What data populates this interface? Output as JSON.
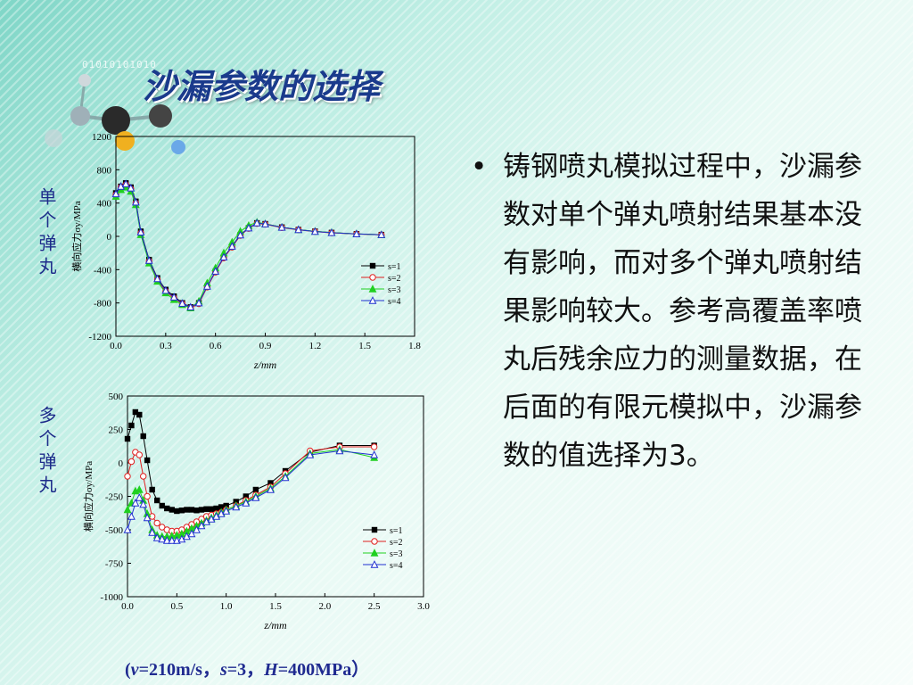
{
  "slide": {
    "title": "沙漏参数的选择",
    "decor_binary": "01010101010",
    "label_single": "单个弹丸",
    "label_multi": "多个弹丸",
    "bullet": "•",
    "body_text": "铸钢喷丸模拟过程中，沙漏参数对单个弹丸喷射结果基本没有影响，而对多个弹丸喷射结果影响较大。参考高覆盖率喷丸后残余应力的测量数据，在后面的有限元模拟中，沙漏参数的值选择为3。",
    "params": {
      "open": "(",
      "v_sym": "v",
      "v_val": "=210m/s，",
      "s_sym": "s",
      "s_val": "=3，",
      "h_sym": "H",
      "h_val": "=400MPa）"
    }
  },
  "chart_data": [
    {
      "type": "line",
      "xlabel": "z/mm",
      "ylabel": "横向应力σy/MPa",
      "xlim": [
        0,
        1.8
      ],
      "ylim": [
        -1200,
        1200
      ],
      "xticks": [
        "0.0",
        "0.3",
        "0.6",
        "0.9",
        "1.2",
        "1.5",
        "1.8"
      ],
      "yticks": [
        "-1200",
        "-800",
        "-400",
        "0",
        "400",
        "800",
        "1200"
      ],
      "legend_placement": "lower-right",
      "series": [
        {
          "name": "s=1",
          "marker": "square-filled",
          "color": "#000000",
          "x": [
            0,
            0.03,
            0.06,
            0.09,
            0.12,
            0.15,
            0.2,
            0.25,
            0.3,
            0.35,
            0.4,
            0.45,
            0.5,
            0.55,
            0.6,
            0.65,
            0.7,
            0.75,
            0.8,
            0.85,
            0.9,
            1.0,
            1.1,
            1.2,
            1.3,
            1.45,
            1.6
          ],
          "y": [
            520,
            600,
            640,
            590,
            420,
            60,
            -280,
            -500,
            -640,
            -720,
            -800,
            -850,
            -800,
            -600,
            -420,
            -250,
            -120,
            20,
            100,
            160,
            150,
            110,
            80,
            60,
            45,
            30,
            20
          ]
        },
        {
          "name": "s=2",
          "marker": "circle-open",
          "color": "#e02020",
          "x": [
            0,
            0.03,
            0.06,
            0.09,
            0.12,
            0.15,
            0.2,
            0.25,
            0.3,
            0.35,
            0.4,
            0.45,
            0.5,
            0.55,
            0.6,
            0.65,
            0.7,
            0.75,
            0.8,
            0.85,
            0.9,
            1.0,
            1.1,
            1.2,
            1.3,
            1.45,
            1.6
          ],
          "y": [
            500,
            590,
            620,
            570,
            400,
            40,
            -300,
            -520,
            -660,
            -740,
            -810,
            -860,
            -810,
            -610,
            -430,
            -260,
            -130,
            10,
            95,
            155,
            145,
            105,
            78,
            58,
            42,
            28,
            18
          ]
        },
        {
          "name": "s=3",
          "marker": "triangle-filled",
          "color": "#20d020",
          "x": [
            0,
            0.03,
            0.06,
            0.09,
            0.12,
            0.15,
            0.2,
            0.25,
            0.3,
            0.35,
            0.4,
            0.45,
            0.5,
            0.55,
            0.6,
            0.65,
            0.7,
            0.75,
            0.8,
            0.85,
            0.9,
            1.0,
            1.1,
            1.2,
            1.3,
            1.45,
            1.6
          ],
          "y": [
            480,
            560,
            590,
            540,
            380,
            20,
            -320,
            -540,
            -680,
            -760,
            -820,
            -860,
            -780,
            -560,
            -380,
            -200,
            -70,
            60,
            130,
            170,
            150,
            110,
            80,
            60,
            45,
            30,
            20
          ]
        },
        {
          "name": "s=4",
          "marker": "triangle-open",
          "color": "#2030d0",
          "x": [
            0,
            0.03,
            0.06,
            0.09,
            0.12,
            0.15,
            0.2,
            0.25,
            0.3,
            0.35,
            0.4,
            0.45,
            0.5,
            0.55,
            0.6,
            0.65,
            0.7,
            0.75,
            0.8,
            0.85,
            0.9,
            1.0,
            1.1,
            1.2,
            1.3,
            1.45,
            1.6
          ],
          "y": [
            510,
            600,
            630,
            580,
            410,
            50,
            -290,
            -510,
            -650,
            -730,
            -805,
            -850,
            -800,
            -600,
            -420,
            -250,
            -120,
            15,
            100,
            160,
            148,
            108,
            80,
            58,
            44,
            29,
            19
          ]
        }
      ]
    },
    {
      "type": "line",
      "xlabel": "z/mm",
      "ylabel": "横向应力σy/MPa",
      "xlim": [
        0,
        3.0
      ],
      "ylim": [
        -1000,
        500
      ],
      "xticks": [
        "0.0",
        "0.5",
        "1.0",
        "1.5",
        "2.0",
        "2.5",
        "3.0"
      ],
      "yticks": [
        "-1000",
        "-750",
        "-500",
        "-250",
        "0",
        "250",
        "500"
      ],
      "legend_placement": "lower-right",
      "series": [
        {
          "name": "s=1",
          "marker": "square-filled",
          "color": "#000000",
          "x": [
            0,
            0.04,
            0.08,
            0.12,
            0.16,
            0.2,
            0.25,
            0.3,
            0.35,
            0.4,
            0.45,
            0.5,
            0.55,
            0.6,
            0.65,
            0.7,
            0.75,
            0.8,
            0.85,
            0.9,
            0.95,
            1.0,
            1.1,
            1.2,
            1.3,
            1.45,
            1.6,
            1.85,
            2.15,
            2.5
          ],
          "y": [
            180,
            280,
            380,
            360,
            200,
            20,
            -200,
            -280,
            -320,
            -340,
            -350,
            -360,
            -355,
            -350,
            -350,
            -355,
            -350,
            -345,
            -345,
            -340,
            -330,
            -320,
            -290,
            -250,
            -200,
            -150,
            -60,
            80,
            130,
            130
          ]
        },
        {
          "name": "s=2",
          "marker": "circle-open",
          "color": "#e02020",
          "x": [
            0,
            0.04,
            0.08,
            0.12,
            0.16,
            0.2,
            0.25,
            0.3,
            0.35,
            0.4,
            0.45,
            0.5,
            0.55,
            0.6,
            0.65,
            0.7,
            0.75,
            0.8,
            0.85,
            0.9,
            0.95,
            1.0,
            1.1,
            1.2,
            1.3,
            1.45,
            1.6,
            1.85,
            2.15,
            2.5
          ],
          "y": [
            -100,
            10,
            80,
            60,
            -100,
            -250,
            -400,
            -450,
            -480,
            -500,
            -510,
            -510,
            -500,
            -480,
            -460,
            -440,
            -420,
            -400,
            -390,
            -380,
            -370,
            -350,
            -320,
            -280,
            -240,
            -180,
            -80,
            90,
            120,
            120
          ]
        },
        {
          "name": "s=3",
          "marker": "triangle-filled",
          "color": "#20d020",
          "x": [
            0,
            0.04,
            0.08,
            0.12,
            0.16,
            0.2,
            0.25,
            0.3,
            0.35,
            0.4,
            0.45,
            0.5,
            0.55,
            0.6,
            0.65,
            0.7,
            0.75,
            0.8,
            0.85,
            0.9,
            0.95,
            1.0,
            1.1,
            1.2,
            1.3,
            1.45,
            1.6,
            1.85,
            2.15,
            2.5
          ],
          "y": [
            -350,
            -300,
            -210,
            -200,
            -280,
            -380,
            -500,
            -540,
            -550,
            -550,
            -545,
            -540,
            -530,
            -510,
            -490,
            -470,
            -450,
            -430,
            -410,
            -390,
            -370,
            -350,
            -320,
            -290,
            -250,
            -190,
            -100,
            70,
            100,
            40
          ]
        },
        {
          "name": "s=4",
          "marker": "triangle-open",
          "color": "#2030d0",
          "x": [
            0,
            0.04,
            0.08,
            0.12,
            0.16,
            0.2,
            0.25,
            0.3,
            0.35,
            0.4,
            0.45,
            0.5,
            0.55,
            0.6,
            0.65,
            0.7,
            0.75,
            0.8,
            0.85,
            0.9,
            0.95,
            1.0,
            1.1,
            1.2,
            1.3,
            1.45,
            1.6,
            1.85,
            2.15,
            2.5
          ],
          "y": [
            -500,
            -400,
            -300,
            -260,
            -310,
            -410,
            -520,
            -560,
            -570,
            -580,
            -580,
            -580,
            -570,
            -550,
            -530,
            -500,
            -470,
            -440,
            -420,
            -400,
            -380,
            -360,
            -330,
            -300,
            -260,
            -200,
            -110,
            60,
            90,
            60
          ]
        }
      ]
    }
  ]
}
